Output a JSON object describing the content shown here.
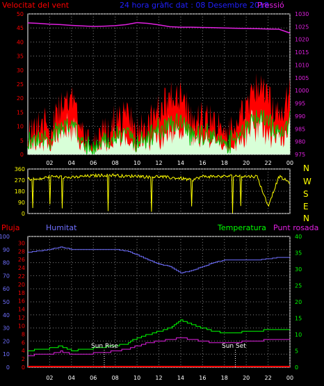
{
  "header": {
    "wind_label": "Velocitat del vent",
    "title": "24 hora gràfic dat : 08 Desembre 2018",
    "pressure_label": "Pressió"
  },
  "wind_panel": {
    "y_ticks": [
      "0",
      "5",
      "10",
      "15",
      "20",
      "25",
      "30",
      "35",
      "40",
      "45",
      "50"
    ],
    "pressure_ticks": [
      "975",
      "980",
      "985",
      "990",
      "995",
      "1000",
      "1005",
      "1010",
      "1015",
      "1020",
      "1025",
      "1030"
    ]
  },
  "direction_panel": {
    "y_ticks": [
      "0",
      "90",
      "180",
      "270",
      "360"
    ],
    "compass": [
      "N",
      "W",
      "S",
      "E",
      "N"
    ]
  },
  "lower_panel": {
    "labels": {
      "rain": "Pluja",
      "humidity": "Humitat",
      "temperature": "Temperatura",
      "dew_point": "Punt rosada"
    },
    "humidity_ticks": [
      "0",
      "10",
      "20",
      "30",
      "40",
      "50",
      "60",
      "70",
      "80",
      "90",
      "100"
    ],
    "rain_ticks": [
      "0",
      "2",
      "4",
      "6",
      "8",
      "10",
      "12",
      "14",
      "16",
      "18",
      "20",
      "22",
      "24",
      "26",
      "28",
      "30"
    ],
    "temp_ticks": [
      "0",
      "5",
      "10",
      "15",
      "20",
      "25",
      "30",
      "35",
      "40"
    ],
    "sunrise_label": "Sun Rise",
    "sunset_label": "Sun Set"
  },
  "x_ticks": [
    "02",
    "04",
    "06",
    "08",
    "10",
    "12",
    "14",
    "16",
    "18",
    "20",
    "22",
    "00"
  ],
  "colors": {
    "wind_gust": "#ff0000",
    "wind_avg": "#00c000",
    "wind_speed": "#d8ffd8",
    "pressure": "#e020e0",
    "direction": "#ffff00",
    "humidity": "#7070ff",
    "temperature": "#00ff00",
    "dew_point": "#e020e0",
    "rain": "#ff0000",
    "grid": "#808080"
  },
  "chart_data": [
    {
      "type": "line",
      "x_unit": "hour",
      "x": [
        0,
        1,
        2,
        3,
        4,
        5,
        6,
        7,
        8,
        9,
        10,
        11,
        12,
        13,
        14,
        15,
        16,
        17,
        18,
        19,
        20,
        21,
        22,
        23,
        24
      ],
      "series": [
        {
          "name": "Velocitat del vent",
          "values": [
            14,
            18,
            16,
            22,
            26,
            16,
            10,
            14,
            18,
            20,
            14,
            16,
            22,
            26,
            28,
            18,
            20,
            18,
            12,
            16,
            22,
            30,
            26,
            20,
            28
          ]
        },
        {
          "name": "Pressió",
          "values": [
            1026.5,
            1026.3,
            1026,
            1025.8,
            1025.5,
            1025.3,
            1025.1,
            1025.2,
            1025.4,
            1025.8,
            1026.6,
            1026.3,
            1025.7,
            1025,
            1024.8,
            1024.8,
            1024.7,
            1024.6,
            1024.5,
            1024.4,
            1024.3,
            1024.2,
            1024.1,
            1024,
            1022.5
          ]
        }
      ],
      "ylim": [
        0,
        50
      ],
      "y2lim": [
        975,
        1030
      ]
    },
    {
      "type": "line",
      "x_unit": "hour",
      "x": [
        0,
        1,
        2,
        3,
        4,
        5,
        6,
        7,
        8,
        9,
        10,
        11,
        12,
        13,
        14,
        15,
        16,
        17,
        18,
        19,
        20,
        21,
        22,
        23,
        24
      ],
      "series": [
        {
          "values": [
            280,
            275,
            300,
            295,
            290,
            300,
            305,
            310,
            310,
            300,
            305,
            295,
            300,
            290,
            285,
            270,
            300,
            300,
            300,
            305,
            300,
            300,
            60,
            300,
            250
          ]
        }
      ],
      "ylim": [
        0,
        360
      ]
    },
    {
      "type": "line",
      "x_unit": "hour",
      "x": [
        0,
        1,
        2,
        3,
        4,
        5,
        6,
        7,
        8,
        9,
        10,
        11,
        12,
        13,
        14,
        15,
        16,
        17,
        18,
        19,
        20,
        21,
        22,
        23,
        24
      ],
      "series": [
        {
          "name": "Humitat",
          "values": [
            88,
            89,
            90,
            92,
            90,
            90,
            90,
            90,
            90,
            89,
            86,
            82,
            79,
            77,
            72,
            74,
            77,
            80,
            82,
            82,
            82,
            82,
            83,
            84,
            84
          ]
        },
        {
          "name": "Temperatura",
          "values": [
            5,
            5.5,
            5.8,
            6.5,
            5.2,
            5.3,
            5.8,
            6.2,
            6.5,
            7.2,
            9,
            10,
            11,
            12,
            14.5,
            13,
            12,
            11,
            10.5,
            10.5,
            11,
            11,
            11.5,
            11.5,
            11.5
          ]
        },
        {
          "name": "Punt rosada",
          "values": [
            3.5,
            4,
            4,
            4.8,
            4,
            4,
            4.3,
            4.5,
            5,
            5.5,
            6.5,
            7.5,
            8,
            8.5,
            9,
            8.5,
            8,
            7.5,
            7.5,
            7.5,
            8,
            8,
            8.5,
            8.5,
            8.5
          ]
        },
        {
          "name": "Pluja",
          "values": [
            0,
            0,
            0,
            0,
            0,
            0,
            0,
            0,
            0,
            0,
            0,
            0,
            0,
            0,
            0,
            0,
            0,
            0,
            0,
            0,
            0,
            0,
            0,
            0,
            0
          ]
        }
      ],
      "ylim": [
        0,
        100
      ],
      "y2lim": [
        0,
        40
      ],
      "sunrise_hour": 7,
      "sunset_hour": 19
    }
  ]
}
